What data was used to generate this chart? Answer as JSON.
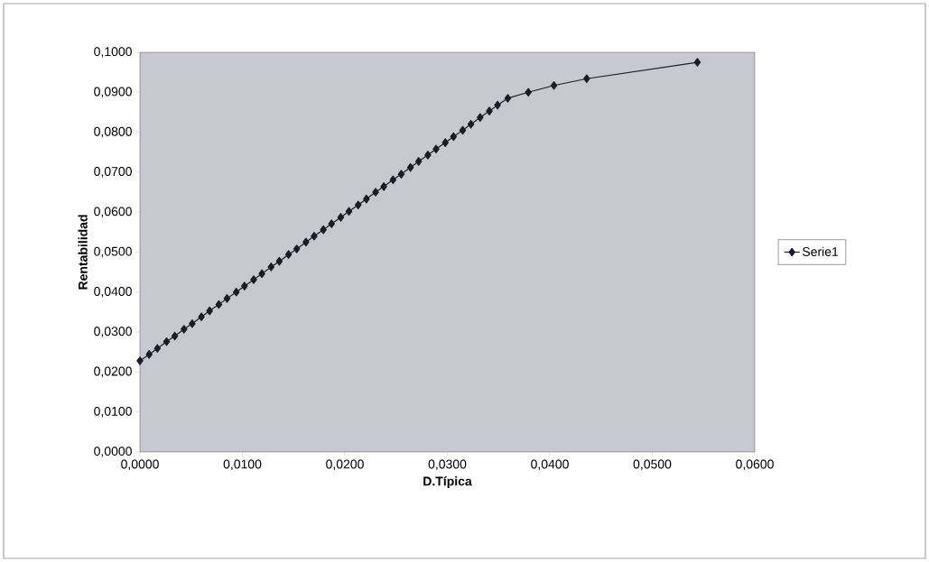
{
  "chart_data": {
    "type": "line",
    "xlabel": "D.Típica",
    "ylabel": "Rentabilidad",
    "series": [
      {
        "name": "Serie1",
        "color": "#1c1c28",
        "x": [
          0.0,
          0.0009,
          0.0017,
          0.0026,
          0.0034,
          0.0043,
          0.0051,
          0.006,
          0.0068,
          0.0077,
          0.0085,
          0.0094,
          0.0102,
          0.0111,
          0.0119,
          0.0128,
          0.0136,
          0.0145,
          0.0153,
          0.0162,
          0.017,
          0.0179,
          0.0187,
          0.0196,
          0.0204,
          0.0213,
          0.0221,
          0.023,
          0.0238,
          0.0247,
          0.0255,
          0.0264,
          0.0272,
          0.0281,
          0.0289,
          0.0298,
          0.0306,
          0.0315,
          0.0323,
          0.0332,
          0.0341,
          0.0349,
          0.0359,
          0.0379,
          0.0404,
          0.0436,
          0.0544
        ],
        "values": [
          0.0228,
          0.0244,
          0.0259,
          0.0276,
          0.029,
          0.0307,
          0.0321,
          0.0338,
          0.0353,
          0.0369,
          0.0384,
          0.04,
          0.0415,
          0.0431,
          0.0446,
          0.0463,
          0.0477,
          0.0494,
          0.0508,
          0.0525,
          0.054,
          0.0556,
          0.0571,
          0.0587,
          0.0602,
          0.0618,
          0.0633,
          0.065,
          0.0664,
          0.0681,
          0.0695,
          0.0712,
          0.0727,
          0.0743,
          0.0758,
          0.0774,
          0.0789,
          0.0805,
          0.082,
          0.0837,
          0.0853,
          0.0868,
          0.0885,
          0.09,
          0.0917,
          0.0934,
          0.0975
        ]
      }
    ],
    "xlim": [
      0,
      0.06
    ],
    "xticks": [
      {
        "value": 0,
        "label": "0,0000"
      },
      {
        "value": 0.01,
        "label": "0,0100"
      },
      {
        "value": 0.02,
        "label": "0,0200"
      },
      {
        "value": 0.03,
        "label": "0,0300"
      },
      {
        "value": 0.04,
        "label": "0,0400"
      },
      {
        "value": 0.05,
        "label": "0,0500"
      },
      {
        "value": 0.06,
        "label": "0,0600"
      }
    ],
    "ylim": [
      0,
      0.1
    ],
    "yticks": [
      {
        "value": 0,
        "label": "0,0000"
      },
      {
        "value": 0.01,
        "label": "0,0100"
      },
      {
        "value": 0.02,
        "label": "0,0200"
      },
      {
        "value": 0.03,
        "label": "0,0300"
      },
      {
        "value": 0.04,
        "label": "0,0400"
      },
      {
        "value": 0.05,
        "label": "0,0500"
      },
      {
        "value": 0.06,
        "label": "0,0600"
      },
      {
        "value": 0.07,
        "label": "0,0700"
      },
      {
        "value": 0.08,
        "label": "0,0800"
      },
      {
        "value": 0.09,
        "label": "0,0900"
      },
      {
        "value": 0.1,
        "label": "0,1000"
      }
    ],
    "grid": false,
    "legend": "right",
    "marker": "diamond",
    "line_style": "solid"
  }
}
